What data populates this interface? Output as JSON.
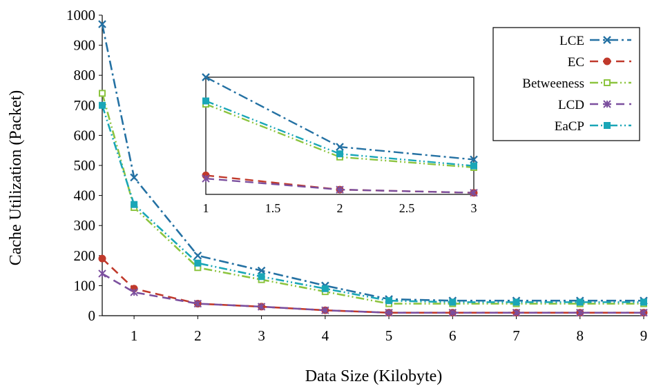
{
  "chart_data": {
    "type": "line",
    "xlabel": "Data Size (Kilobyte)",
    "ylabel": "Cache Utilization (Packet)",
    "xlim": [
      0.5,
      9
    ],
    "ylim": [
      0,
      1000
    ],
    "xticks": [
      1,
      2,
      3,
      4,
      5,
      6,
      7,
      8,
      9
    ],
    "yticks": [
      0,
      100,
      200,
      300,
      400,
      500,
      600,
      700,
      800,
      900,
      1000
    ],
    "x": [
      0.5,
      1,
      2,
      3,
      4,
      5,
      6,
      7,
      8,
      9
    ],
    "legend_position": "top-right",
    "series": [
      {
        "name": "LCE",
        "color": "#2471a3",
        "marker": "x",
        "dash": "dash-dot",
        "values": [
          970,
          460,
          200,
          150,
          100,
          55,
          50,
          50,
          50,
          50
        ]
      },
      {
        "name": "EC",
        "color": "#c0392b",
        "marker": "circle",
        "dash": "dash",
        "values": [
          190,
          90,
          40,
          30,
          18,
          10,
          10,
          10,
          10,
          10
        ]
      },
      {
        "name": "Betweeness",
        "color": "#8cc43f",
        "marker": "open-square",
        "dash": "dash-dot-dot",
        "values": [
          740,
          360,
          160,
          120,
          80,
          40,
          40,
          40,
          40,
          40
        ]
      },
      {
        "name": "LCD",
        "color": "#7b4f9e",
        "marker": "star",
        "dash": "dash",
        "values": [
          140,
          78,
          40,
          30,
          18,
          10,
          10,
          10,
          10,
          10
        ]
      },
      {
        "name": "EaCP",
        "color": "#1aa6b7",
        "marker": "square",
        "dash": "dash-dot-dot",
        "values": [
          700,
          370,
          175,
          130,
          90,
          50,
          45,
          45,
          45,
          45
        ]
      }
    ],
    "inset": {
      "xlim": [
        1,
        3
      ],
      "xticks": [
        "1",
        "1.5",
        "2",
        "2.5",
        "3"
      ],
      "x": [
        1,
        2,
        3
      ]
    }
  }
}
